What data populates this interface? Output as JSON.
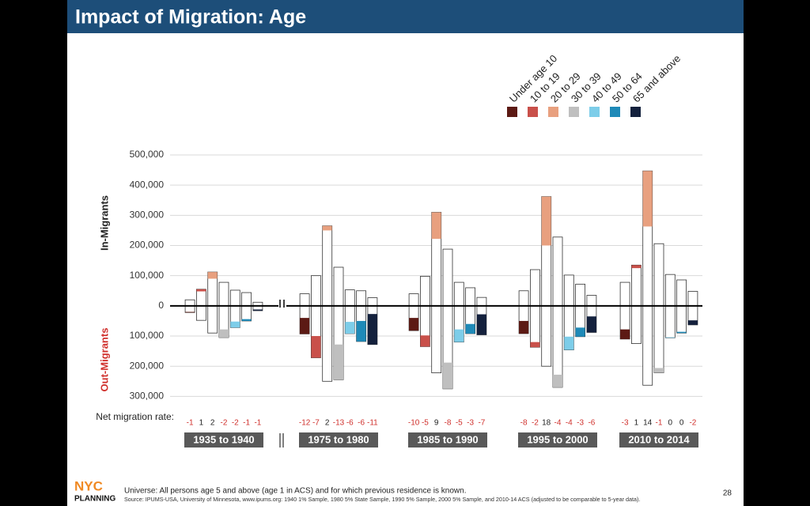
{
  "header": {
    "title": "Impact of Migration:  Age"
  },
  "chart_data": {
    "type": "bar",
    "series": [
      {
        "name": "Under age 10",
        "color": "#5c1a14"
      },
      {
        "name": "10 to 19",
        "color": "#c9504a"
      },
      {
        "name": "20 to 29",
        "color": "#e8a07f"
      },
      {
        "name": "30 to 39",
        "color": "#bfbfbf"
      },
      {
        "name": "40 to 49",
        "color": "#7dcde9"
      },
      {
        "name": "50 to 64",
        "color": "#1f8ab8"
      },
      {
        "name": "65 and above",
        "color": "#14213d"
      }
    ],
    "y_label_in": "In-Migrants",
    "y_label_out": "Out-Migrants",
    "net_rate_label": "Net migration rate:",
    "ylim": [
      -320000,
      500000
    ],
    "yticks": [
      {
        "value": 500000,
        "label": "500,000"
      },
      {
        "value": 400000,
        "label": "400,000"
      },
      {
        "value": 300000,
        "label": "300,000"
      },
      {
        "value": 200000,
        "label": "200,000"
      },
      {
        "value": 100000,
        "label": "100,000"
      },
      0,
      {
        "value": -100000,
        "label": "100,000"
      },
      {
        "value": -200000,
        "label": "200,000"
      },
      {
        "value": -300000,
        "label": "300,000"
      }
    ],
    "grid": true,
    "periods": [
      {
        "name": "1935 to 1940",
        "in": [
          20000,
          55000,
          112000,
          78000,
          52000,
          44000,
          12000
        ],
        "out": [
          22000,
          48000,
          90000,
          105000,
          72000,
          50000,
          16000
        ],
        "net_rate": [
          -1,
          1,
          2,
          -2,
          -2,
          -1,
          -1
        ]
      },
      {
        "name": "1975 to 1980",
        "in": [
          40000,
          100000,
          265000,
          128000,
          53000,
          50000,
          27000
        ],
        "out": [
          93000,
          172000,
          250000,
          245000,
          92000,
          118000,
          128000
        ],
        "net_rate": [
          -12,
          -7,
          2,
          -13,
          -6,
          -6,
          -11
        ]
      },
      {
        "name": "1985 to 1990",
        "in": [
          40000,
          98000,
          310000,
          188000,
          78000,
          60000,
          28000
        ],
        "out": [
          82000,
          135000,
          222000,
          275000,
          120000,
          92000,
          96000
        ],
        "net_rate": [
          -10,
          -5,
          9,
          -8,
          -5,
          -3,
          -7
        ]
      },
      {
        "name": "1995 to 2000",
        "in": [
          50000,
          120000,
          362000,
          228000,
          102000,
          72000,
          35000
        ],
        "out": [
          92000,
          137000,
          200000,
          270000,
          146000,
          102000,
          88000
        ],
        "net_rate": [
          -8,
          -2,
          18,
          -4,
          -4,
          -3,
          -6
        ]
      },
      {
        "name": "2010 to 2014",
        "in": [
          78000,
          135000,
          447000,
          206000,
          104000,
          86000,
          48000
        ],
        "out": [
          110000,
          125000,
          263000,
          222000,
          106000,
          90000,
          63000
        ],
        "net_rate": [
          -3,
          1,
          14,
          -1,
          0,
          0,
          -2
        ]
      }
    ]
  },
  "footer": {
    "logo_top": "NYC",
    "logo_bottom": "PLANNING",
    "universe": "Universe: All persons age 5 and above (age 1 in ACS) and for which previous residence is known.",
    "source": "Source: IPUMS-USA, University of Minnesota, www.ipums.org: 1940 1% Sample, 1980 5% State Sample, 1990 5% Sample, 2000 5% Sample, and 2010-14 ACS (adjusted to be comparable to 5-year data).",
    "page": "28"
  }
}
